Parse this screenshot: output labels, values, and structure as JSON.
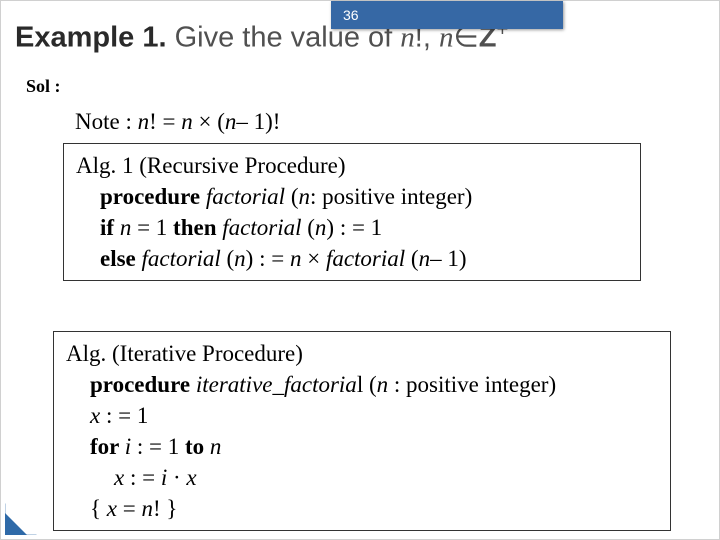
{
  "page_number": "36",
  "title": {
    "label": "Example 1.",
    "rest": "Give the value of ",
    "expr1": "n",
    "excl": "!, ",
    "expr2": "n",
    "in": "∈",
    "set": "Z",
    "sup": "+"
  },
  "sol_label": "Sol :",
  "note": {
    "prefix": "Note : ",
    "body1": "n",
    "body2": "! = ",
    "body3": "n",
    "times": " × (",
    "body4": "n",
    "minus": "– 1)!"
  },
  "alg1": {
    "line1a": "Alg. 1 (Recursive Procedure)",
    "line2a": "procedure ",
    "line2b": "factorial",
    "line2c": " (",
    "line2d": "n",
    "line2e": ": positive integer)",
    "line3a": "if ",
    "line3b": "n",
    "line3c": " = 1 ",
    "line3d": "then ",
    "line3e": "factorial",
    "line3f": " (",
    "line3g": "n",
    "line3h": ") : = 1",
    "line4a": "else ",
    "line4b": "factorial",
    "line4c": " (",
    "line4d": "n",
    "line4e": ") : = ",
    "line4f": "n",
    "line4g": " × ",
    "line4h": "factorial",
    "line4i": " (",
    "line4j": "n",
    "line4k": "– 1)"
  },
  "alg2": {
    "line1a": "Alg. (Iterative Procedure)",
    "line2a": "procedure ",
    "line2b": "iterative_factoria",
    "line2c": "l (",
    "line2d": "n",
    "line2e": " : positive integer)",
    "line3a": "x",
    "line3b": " : = 1",
    "line4a": "for  ",
    "line4b": "i",
    "line4c": " : = 1 ",
    "line4d": "to ",
    "line4e": "n",
    "line5a": "x",
    "line5b": " : = ",
    "line5c": "i",
    "line5d": " · ",
    "line5e": "x",
    "line6a": "{ ",
    "line6b": "x",
    "line6c": " = ",
    "line6d": "n",
    "line6e": "! }"
  }
}
